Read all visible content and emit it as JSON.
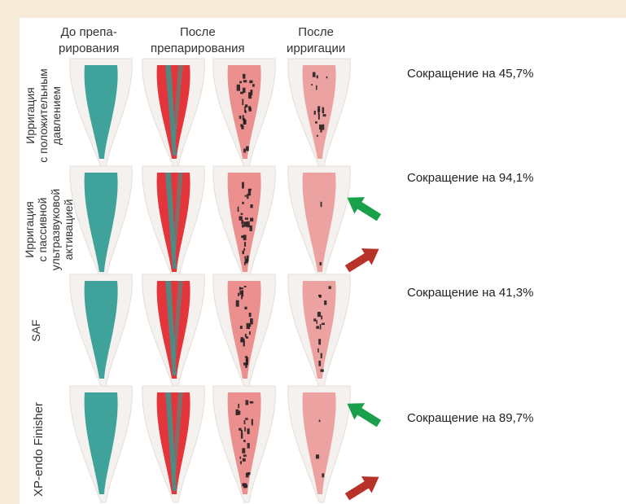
{
  "columns": [
    {
      "line1": "До препа-",
      "line2": "рирования"
    },
    {
      "line1": "После",
      "line2": "препарирования"
    },
    {
      "line1": "После",
      "line2": "ирригации"
    }
  ],
  "rows": [
    {
      "label_lines": [
        "Ирригация",
        "с положительным",
        "давлением"
      ],
      "reduction": "Сокращение на 45,7%"
    },
    {
      "label_lines": [
        "Ирригация",
        "с пассивной",
        "ультразвуковой",
        "активацией"
      ],
      "reduction": "Сокращение на 94,1%"
    },
    {
      "label_lines": [
        "SAF"
      ],
      "reduction": "Сокращение на 41,3%"
    },
    {
      "label_lines": [
        "XP-endo Finisher"
      ],
      "reduction": "Сокращение на 89,7%"
    }
  ],
  "colors": {
    "background_outer": "#f6ead9",
    "teal_stain": "#2f9c94",
    "red_stain": "#e2252a",
    "pink_residual": "#e98787",
    "debris": "#1b1b1b",
    "arrow_green": "#1aa04a",
    "arrow_red": "#b8322a"
  },
  "arrows": [
    {
      "row": 1,
      "type": "green-arrow"
    },
    {
      "row": 1,
      "type": "red-arrow"
    },
    {
      "row": 3,
      "type": "green-arrow"
    },
    {
      "row": 3,
      "type": "red-arrow"
    }
  ]
}
